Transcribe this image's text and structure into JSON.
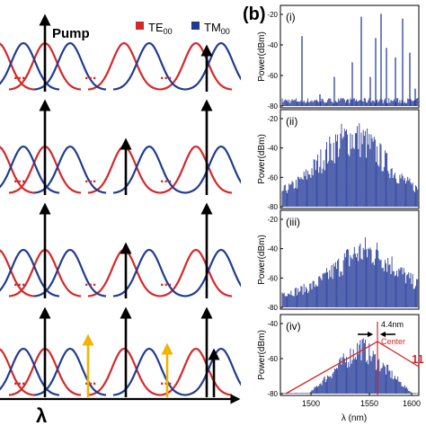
{
  "left_panel": {
    "pump_label": "Pump",
    "legend": [
      {
        "label": "TE",
        "sub": "00",
        "color": "#d62728"
      },
      {
        "label": "TM",
        "sub": "00",
        "color": "#1f3c8f"
      }
    ],
    "ellipsis": "...",
    "xaxis_label": "λ",
    "colors": {
      "te": "#d62728",
      "tm": "#1f3c8f",
      "arrow": "#000000",
      "highlight": "#f2b300",
      "ellipsis": "#d62728"
    }
  },
  "right_panel": {
    "panel_label": "(b)",
    "ylabel": "Power(dBm)",
    "xlabel": "λ (nm)",
    "yticks": [
      "-20",
      "-40",
      "-60",
      "-80"
    ],
    "xticks": [
      "1500",
      "1550",
      "1600"
    ],
    "subplots": [
      {
        "label": "(i)"
      },
      {
        "label": "(ii)"
      },
      {
        "label": "(iii)"
      },
      {
        "label": "(iv)",
        "annotations": {
          "width": "4.4nm",
          "center": "Center",
          "value": "11"
        }
      }
    ],
    "colors": {
      "spectrum": "#2a3f9c",
      "annotation": "#d62728"
    }
  }
}
